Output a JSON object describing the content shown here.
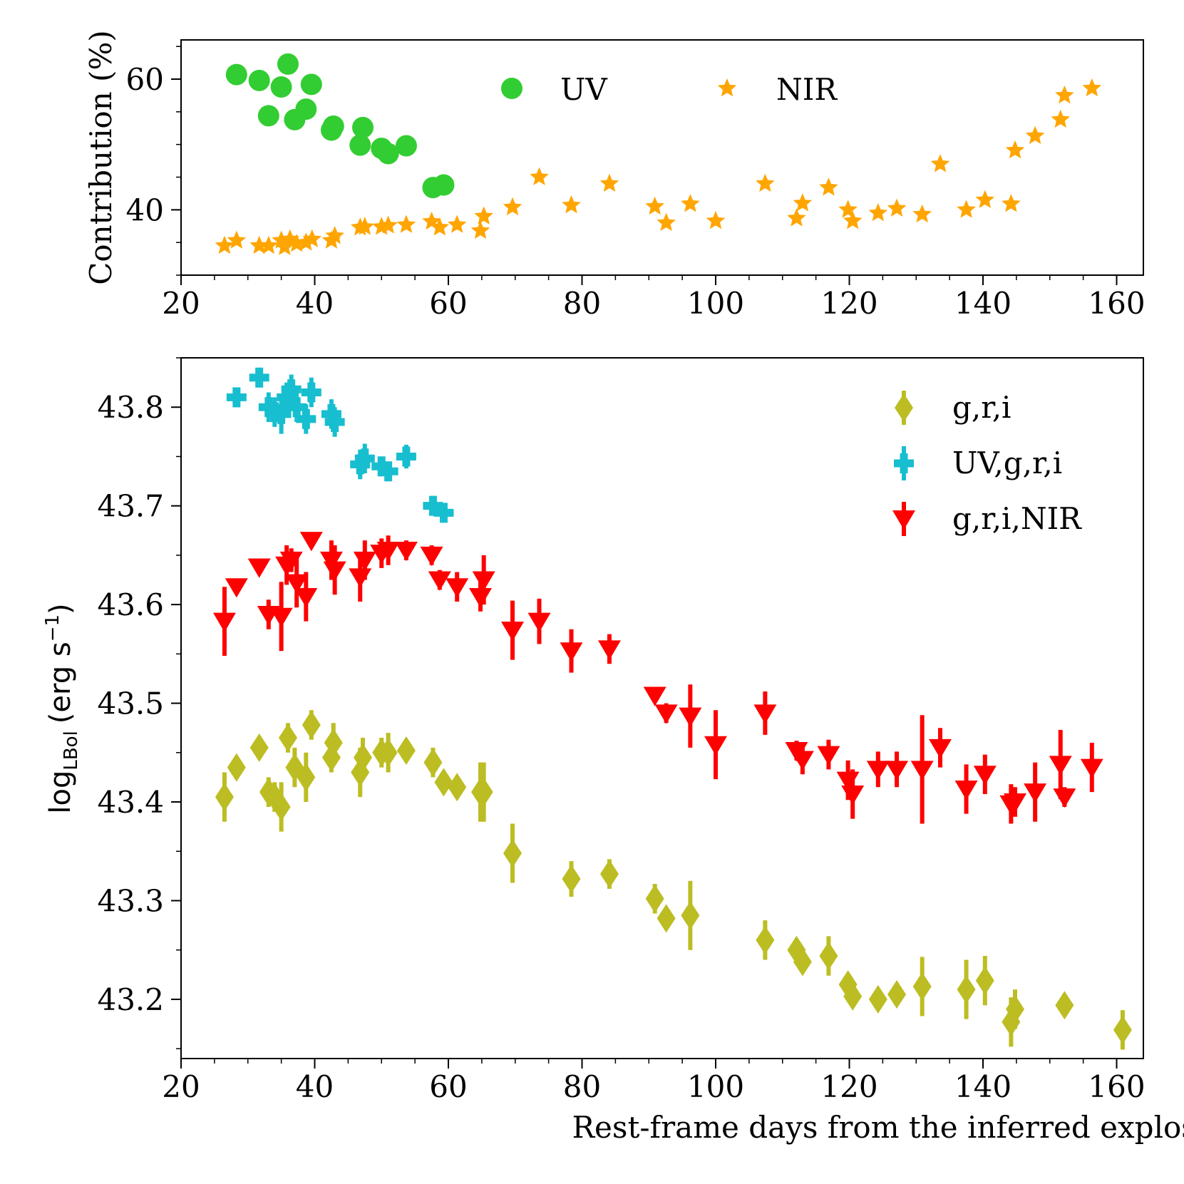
{
  "chart_data": [
    {
      "type": "scatter",
      "panel": "top",
      "title": "",
      "xlabel": "",
      "ylabel": "Contribution (%)",
      "xlim": [
        20,
        164
      ],
      "ylim": [
        30,
        66
      ],
      "xticks": [
        20,
        40,
        60,
        80,
        100,
        120,
        140,
        160
      ],
      "xtick_labels": [
        "20",
        "40",
        "60",
        "80",
        "100",
        "120",
        "140",
        "160"
      ],
      "yticks": [
        40,
        60
      ],
      "ytick_labels": [
        "40",
        "60"
      ],
      "legend_position": "top-center",
      "series": [
        {
          "name": "UV",
          "marker": "circle",
          "color": "#32cd32",
          "x": [
            28.3,
            31.7,
            33.1,
            35.0,
            36.0,
            37.0,
            38.7,
            39.5,
            42.5,
            42.8,
            46.8,
            47.2,
            50.0,
            51.0,
            53.7,
            57.7,
            59.3
          ],
          "y": [
            60.7,
            59.8,
            54.4,
            58.8,
            62.3,
            53.8,
            55.4,
            59.2,
            52.2,
            52.8,
            49.9,
            52.6,
            49.4,
            48.6,
            49.8,
            43.4,
            43.8
          ]
        },
        {
          "name": "NIR",
          "marker": "star",
          "color": "#ffa500",
          "x": [
            26.5,
            28.3,
            31.7,
            33.1,
            35.0,
            35.5,
            36.3,
            37.3,
            38.7,
            39.6,
            42.5,
            43.0,
            46.8,
            47.5,
            50.0,
            51.0,
            53.7,
            57.5,
            58.7,
            61.3,
            64.8,
            65.3,
            69.6,
            73.6,
            78.4,
            84.1,
            90.9,
            92.6,
            96.2,
            100.0,
            107.4,
            112.1,
            113.0,
            116.9,
            119.8,
            120.5,
            124.3,
            127.1,
            130.9,
            133.6,
            137.5,
            140.3,
            144.2,
            144.8,
            147.8,
            151.6,
            152.2,
            156.3
          ],
          "y": [
            34.5,
            35.3,
            34.5,
            34.5,
            35.3,
            34.3,
            35.5,
            34.8,
            35.0,
            35.5,
            35.3,
            36.0,
            37.3,
            37.4,
            37.4,
            37.6,
            37.7,
            38.2,
            37.3,
            37.7,
            36.8,
            39.0,
            40.4,
            45.0,
            40.7,
            44.0,
            40.5,
            38.0,
            40.9,
            38.3,
            44.0,
            38.7,
            41.0,
            43.4,
            40.0,
            38.3,
            39.5,
            40.2,
            39.3,
            47.0,
            40.0,
            41.5,
            40.9,
            49.1,
            51.3,
            53.8,
            57.5,
            58.6
          ]
        }
      ]
    },
    {
      "type": "scatter",
      "panel": "bottom",
      "title": "",
      "xlabel": "Rest-frame days from the inferred explosion epoch",
      "ylabel": "log",
      "ylabel_sub": "LBol",
      "ylabel_units": "(erg s",
      "ylabel_units_sup": "−1",
      "ylabel_units_close": ")",
      "xlim": [
        20,
        164
      ],
      "ylim": [
        43.14,
        43.85
      ],
      "xticks": [
        20,
        40,
        60,
        80,
        100,
        120,
        140,
        160
      ],
      "xtick_labels": [
        "20",
        "40",
        "60",
        "80",
        "100",
        "120",
        "140",
        "160"
      ],
      "yticks": [
        43.2,
        43.3,
        43.4,
        43.5,
        43.6,
        43.7,
        43.8
      ],
      "ytick_labels": [
        "43.2",
        "43.3",
        "43.4",
        "43.5",
        "43.6",
        "43.7",
        "43.8"
      ],
      "legend_position": "top-right",
      "series": [
        {
          "name": "g,r,i",
          "marker": "diamond",
          "color": "#bcbd22",
          "x": [
            26.5,
            28.3,
            31.7,
            33.1,
            34.0,
            35.0,
            36.0,
            37.0,
            38.7,
            39.5,
            42.5,
            42.8,
            46.8,
            47.2,
            50.0,
            51.0,
            53.7,
            57.7,
            59.3,
            61.3,
            64.8,
            65.3,
            69.6,
            78.4,
            84.1,
            90.9,
            92.6,
            96.2,
            107.4,
            112.1,
            113.0,
            116.9,
            119.8,
            120.5,
            124.3,
            127.1,
            130.9,
            137.5,
            140.3,
            144.2,
            144.8,
            152.2,
            160.9
          ],
          "y": [
            43.405,
            43.435,
            43.455,
            43.41,
            43.405,
            43.395,
            43.465,
            43.435,
            43.425,
            43.478,
            43.445,
            43.46,
            43.43,
            43.445,
            43.45,
            43.45,
            43.452,
            43.44,
            43.42,
            43.415,
            43.41,
            43.41,
            43.348,
            43.322,
            43.327,
            43.302,
            43.282,
            43.285,
            43.26,
            43.25,
            43.238,
            43.244,
            43.215,
            43.203,
            43.2,
            43.205,
            43.213,
            43.21,
            43.219,
            43.177,
            43.19,
            43.194,
            43.169
          ],
          "yerr": [
            0.025,
            0.01,
            0.01,
            0.015,
            0.015,
            0.025,
            0.015,
            0.02,
            0.025,
            0.015,
            0.015,
            0.02,
            0.025,
            0.02,
            0.015,
            0.02,
            0.01,
            0.015,
            0.01,
            0.01,
            0.03,
            0.03,
            0.03,
            0.018,
            0.015,
            0.015,
            0.01,
            0.035,
            0.02,
            0.01,
            0.01,
            0.02,
            0.01,
            0.01,
            0.01,
            0.01,
            0.03,
            0.03,
            0.025,
            0.025,
            0.02,
            0.01,
            0.02
          ]
        },
        {
          "name": "UV,g,r,i",
          "marker": "plus",
          "color": "#17becf",
          "x": [
            28.3,
            31.7,
            33.1,
            34.0,
            35.0,
            35.8,
            36.5,
            37.3,
            38.7,
            39.5,
            42.5,
            43.0,
            46.8,
            47.5,
            50.0,
            51.0,
            53.7,
            57.7,
            59.3
          ],
          "y": [
            43.81,
            43.83,
            43.8,
            43.795,
            43.793,
            43.81,
            43.818,
            43.8,
            43.788,
            43.815,
            43.793,
            43.785,
            43.742,
            43.748,
            43.74,
            43.735,
            43.75,
            43.7,
            43.693
          ],
          "yerr": [
            0.01,
            0.01,
            0.015,
            0.015,
            0.02,
            0.015,
            0.015,
            0.015,
            0.015,
            0.015,
            0.015,
            0.015,
            0.015,
            0.015,
            0.01,
            0.01,
            0.012,
            0.01,
            0.01
          ]
        },
        {
          "name": "g,r,i,NIR",
          "marker": "triangle-down",
          "color": "#ff0000",
          "x": [
            26.5,
            28.3,
            31.7,
            33.1,
            35.0,
            35.8,
            36.5,
            37.3,
            38.7,
            39.5,
            42.5,
            43.0,
            46.8,
            47.5,
            50.0,
            51.0,
            53.7,
            57.5,
            58.7,
            61.3,
            64.8,
            65.3,
            69.6,
            73.6,
            78.4,
            84.1,
            90.9,
            92.6,
            96.2,
            100.0,
            107.4,
            112.1,
            113.0,
            116.9,
            119.8,
            120.5,
            124.3,
            127.1,
            130.9,
            133.6,
            137.5,
            140.3,
            144.2,
            144.8,
            147.8,
            151.6,
            152.2,
            156.3
          ],
          "y": [
            43.583,
            43.618,
            43.638,
            43.59,
            43.588,
            43.64,
            43.645,
            43.622,
            43.608,
            43.665,
            43.645,
            43.635,
            43.628,
            43.645,
            43.652,
            43.655,
            43.655,
            43.65,
            43.625,
            43.618,
            43.608,
            43.625,
            43.574,
            43.583,
            43.553,
            43.555,
            43.508,
            43.49,
            43.487,
            43.458,
            43.49,
            43.452,
            43.443,
            43.448,
            43.422,
            43.408,
            43.433,
            43.433,
            43.433,
            43.455,
            43.413,
            43.428,
            43.398,
            43.4,
            43.41,
            43.438,
            43.405,
            43.435
          ],
          "yerr": [
            0.035,
            0.005,
            0.005,
            0.015,
            0.035,
            0.02,
            0.012,
            0.025,
            0.025,
            0.005,
            0.02,
            0.025,
            0.025,
            0.02,
            0.015,
            0.015,
            0.01,
            0.01,
            0.01,
            0.015,
            0.015,
            0.025,
            0.03,
            0.023,
            0.022,
            0.015,
            0.005,
            0.01,
            0.032,
            0.035,
            0.022,
            0.01,
            0.015,
            0.015,
            0.02,
            0.025,
            0.018,
            0.018,
            0.055,
            0.02,
            0.025,
            0.02,
            0.02,
            0.015,
            0.03,
            0.035,
            0.01,
            0.025
          ]
        }
      ]
    }
  ]
}
